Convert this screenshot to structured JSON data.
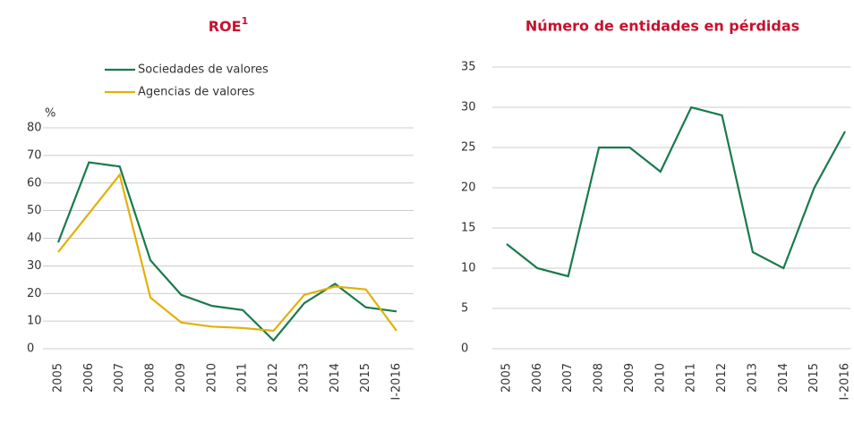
{
  "chart_data": [
    {
      "type": "line",
      "title": "ROE",
      "title_superscript": "1",
      "ylabel": "%",
      "categories": [
        "2005",
        "2006",
        "2007",
        "2008",
        "2009",
        "2010",
        "2011",
        "2012",
        "2013",
        "2014",
        "2015",
        "I-2016"
      ],
      "series": [
        {
          "name": "Sociedades de valores",
          "color": "#1a7a4c",
          "values": [
            38.5,
            67.5,
            66,
            32,
            19.5,
            15.5,
            14,
            3,
            16.5,
            23.5,
            15,
            13.5
          ]
        },
        {
          "name": "Agencias de valores",
          "color": "#e0b10a",
          "values": [
            35,
            49,
            63,
            18.5,
            9.5,
            8,
            7.5,
            6.5,
            19.5,
            22.5,
            21.5,
            6.5
          ]
        }
      ],
      "ylim": [
        0,
        80
      ],
      "yticks": [
        0,
        10,
        20,
        30,
        40,
        50,
        60,
        70,
        80
      ],
      "grid": true,
      "legend": "top"
    },
    {
      "type": "line",
      "title": "Número de entidades en pérdidas",
      "categories": [
        "2005",
        "2006",
        "2007",
        "2008",
        "2009",
        "2010",
        "2011",
        "2012",
        "2013",
        "2014",
        "2015",
        "I-2016"
      ],
      "series": [
        {
          "color": "#1a7a4c",
          "values": [
            13,
            10,
            9,
            25,
            25,
            22,
            30,
            29,
            12,
            10,
            20,
            27
          ]
        }
      ],
      "ylim": [
        0,
        35
      ],
      "yticks": [
        0,
        5,
        10,
        15,
        20,
        25,
        30,
        35
      ],
      "grid": true
    }
  ]
}
